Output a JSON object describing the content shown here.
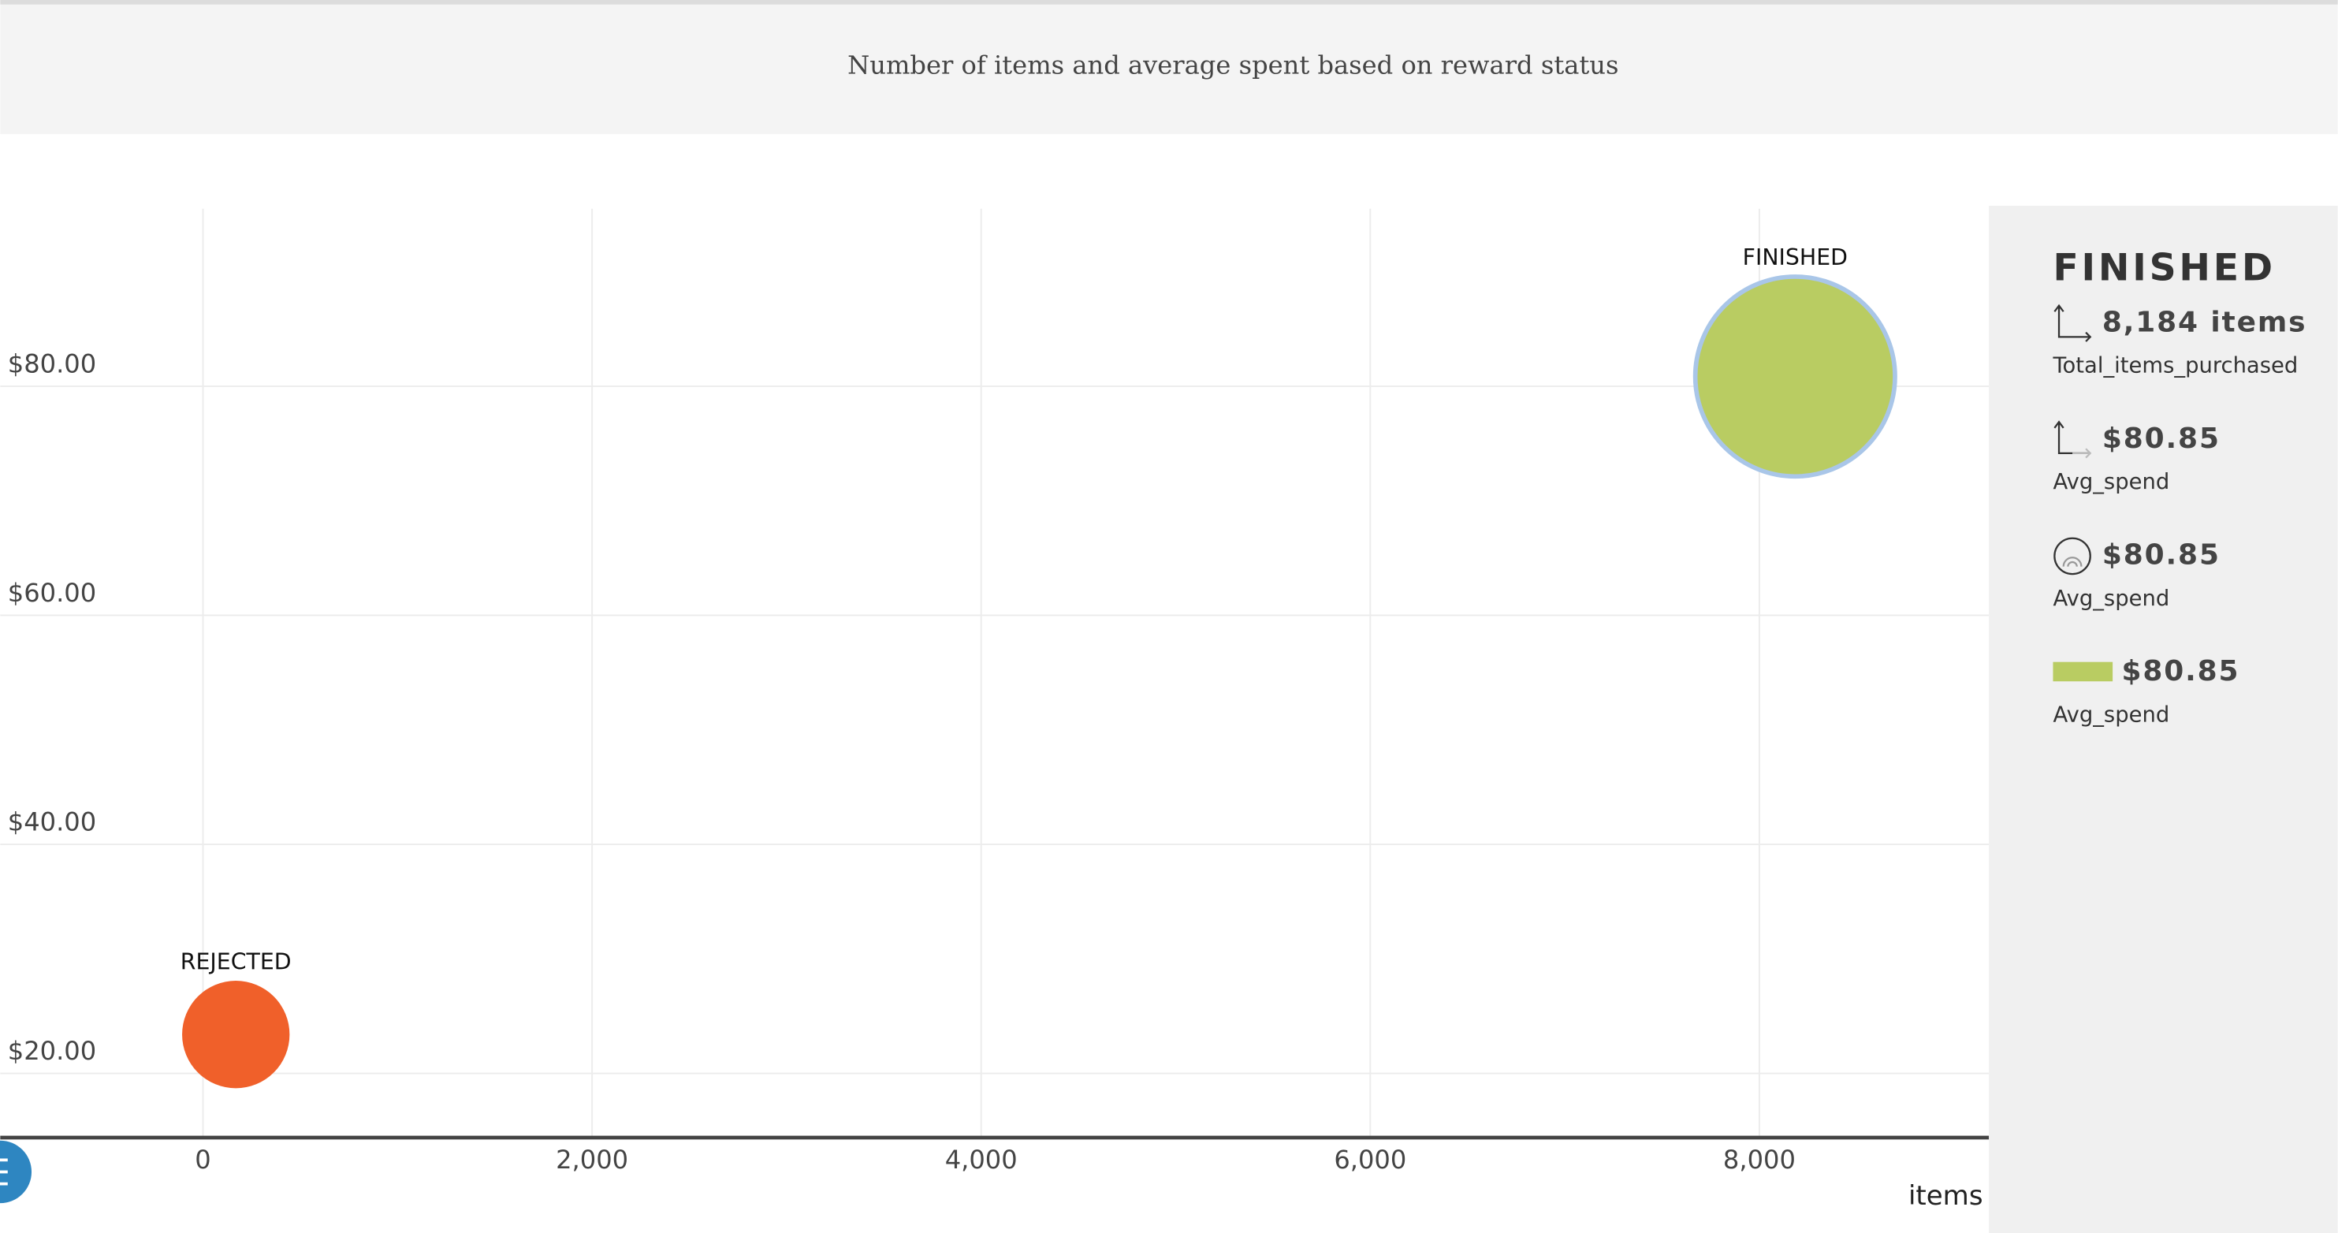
{
  "chart_data": {
    "type": "scatter",
    "title": "Number of items and average spent based on reward status",
    "x_label": "items",
    "labels": [
      "REJECTED",
      "FINISHED"
    ],
    "x": [
      169,
      8184
    ],
    "values": [
      23.4,
      80.85
    ],
    "sizes": [
      23.4,
      80.85
    ],
    "colors": [
      "#f0602a",
      "#b9cc62"
    ],
    "xlim": [
      -1042,
      9180
    ],
    "ylim": [
      14.4,
      95.5
    ],
    "xticks": [
      0,
      {
        "value": 2000,
        "label": "2,000"
      },
      {
        "value": 4000,
        "label": "4,000"
      },
      {
        "value": 6000,
        "label": "6,000"
      },
      {
        "value": 8000,
        "label": "8,000"
      }
    ],
    "yticks": [
      {
        "value": 20,
        "label": "$20.00"
      },
      {
        "value": 40,
        "label": "$40.00"
      },
      {
        "value": 60,
        "label": "$60.00"
      },
      {
        "value": 80,
        "label": "$80.00"
      }
    ],
    "grid": true,
    "detail": {
      "title": "FINISHED",
      "rows": [
        {
          "value": "8,184 items",
          "label": "Total_items_purchased"
        },
        {
          "value": "$80.85",
          "label": "Avg_spend"
        },
        {
          "value": "$80.85",
          "label": "Avg_spend"
        },
        {
          "value": "$80.85",
          "label": "Avg_spend"
        }
      ]
    }
  }
}
